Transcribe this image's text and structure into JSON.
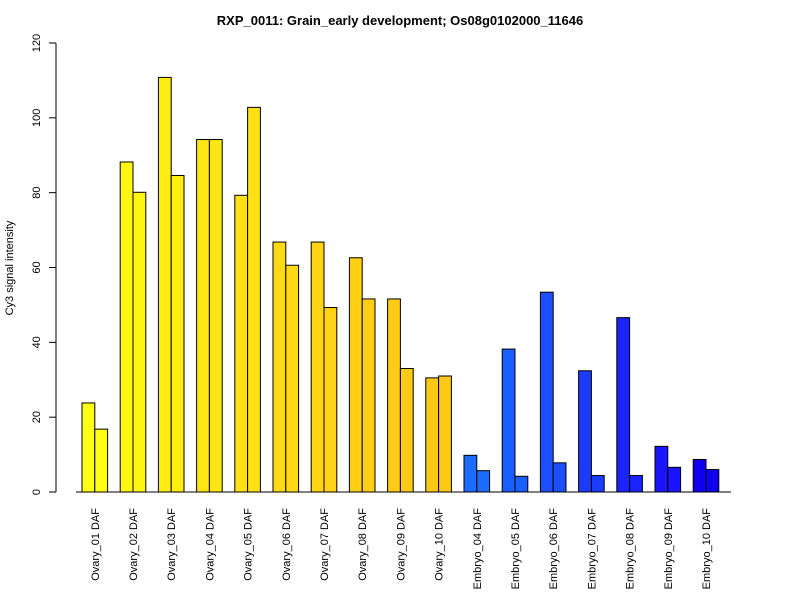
{
  "chart_data": {
    "type": "bar",
    "title": "RXP_0011: Grain_early development; Os08g0102000_11646",
    "xlabel": "",
    "ylabel": "Cy3 signal intensity",
    "ylim": [
      0,
      120
    ],
    "yticks": [
      0,
      20,
      40,
      60,
      80,
      100,
      120
    ],
    "ytick_labels": [
      "0",
      "20",
      "40",
      "60",
      "80",
      "100",
      "120"
    ],
    "grid": false,
    "legend": "none",
    "grouped_replicates": 2,
    "categories": [
      "Ovary_01 DAF",
      "Ovary_02 DAF",
      "Ovary_03 DAF",
      "Ovary_04 DAF",
      "Ovary_05 DAF",
      "Ovary_06 DAF",
      "Ovary_07 DAF",
      "Ovary_08 DAF",
      "Ovary_09 DAF",
      "Ovary_10 DAF",
      "Embryo_04 DAF",
      "Embryo_05 DAF",
      "Embryo_06 DAF",
      "Embryo_07 DAF",
      "Embryo_08 DAF",
      "Embryo_09 DAF",
      "Embryo_10 DAF"
    ],
    "series": [
      {
        "values": [
          23.8,
          88.2,
          110.8,
          94.2,
          79.3,
          66.8,
          66.8,
          62.6,
          51.6,
          30.5,
          9.8,
          38.2,
          53.4,
          32.4,
          46.6,
          12.2,
          8.7
        ]
      },
      {
        "values": [
          16.8,
          80.1,
          84.6,
          94.2,
          102.8,
          60.6,
          49.3,
          51.6,
          33.0,
          31.0,
          5.7,
          4.2,
          7.8,
          4.4,
          4.4,
          6.6,
          6.0
        ]
      }
    ],
    "colors": [
      "#FFFF14",
      "#FFF614",
      "#FFEE14",
      "#FFE614",
      "#FFE014",
      "#FFD914",
      "#FFD414",
      "#FFCF14",
      "#FFCB14",
      "#FFC814",
      "#1B6CFF",
      "#1B5EFF",
      "#1B4FFF",
      "#1B3BFF",
      "#1B24FF",
      "#1B14FF",
      "#0F00F0"
    ]
  }
}
